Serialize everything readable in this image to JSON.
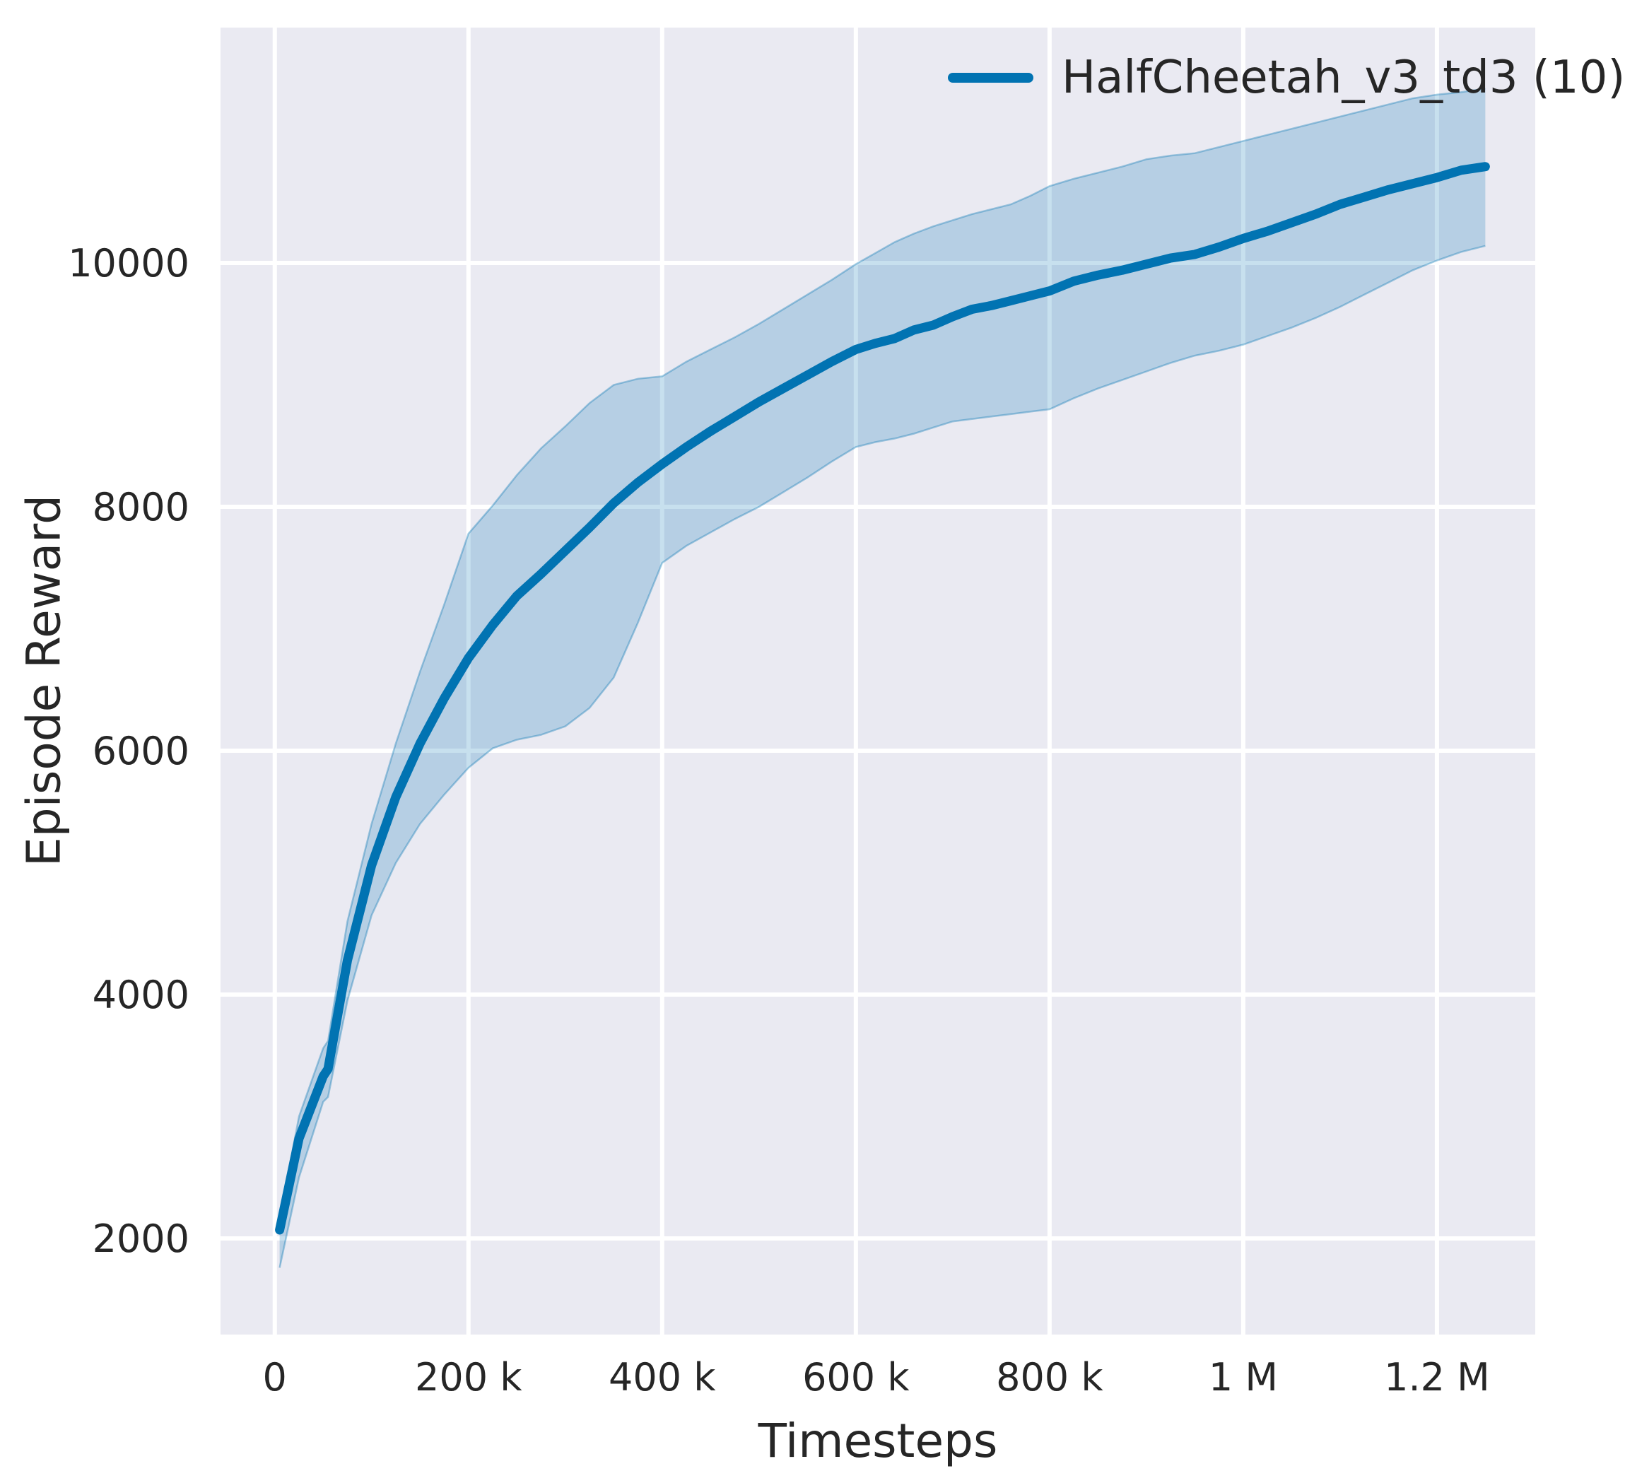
{
  "chart_data": {
    "type": "line",
    "title": "",
    "xlabel": "Timesteps",
    "ylabel": "Episode Reward",
    "legend": {
      "position": "upper right",
      "frame": false,
      "entries": [
        {
          "label": "HalfCheetah_v3_td3 (10)",
          "color": "#0173b2"
        }
      ]
    },
    "grid": true,
    "x_ticks": {
      "values": [
        0,
        200000,
        400000,
        600000,
        800000,
        1000000,
        1200000
      ],
      "labels": [
        "0",
        "200 k",
        "400 k",
        "600 k",
        "800 k",
        "1 M",
        "1.2 M"
      ]
    },
    "y_ticks": {
      "values": [
        2000,
        4000,
        6000,
        8000,
        10000
      ],
      "labels": [
        "2000",
        "4000",
        "6000",
        "8000",
        "10000"
      ]
    },
    "xlim": [
      -56000,
      1301500
    ],
    "ylim": [
      1212,
      11930
    ],
    "series": [
      {
        "name": "HalfCheetah_v3_td3 (10)",
        "x": [
          5000,
          25000,
          50000,
          55000,
          75000,
          100000,
          125000,
          150000,
          175000,
          200000,
          225000,
          250000,
          275000,
          300000,
          325000,
          350000,
          375000,
          400000,
          425000,
          450000,
          475000,
          500000,
          525000,
          550000,
          575000,
          600000,
          620000,
          640000,
          660000,
          680000,
          700000,
          720000,
          740000,
          760000,
          780000,
          800000,
          825000,
          850000,
          875000,
          900000,
          925000,
          950000,
          975000,
          1000000,
          1025000,
          1050000,
          1075000,
          1100000,
          1125000,
          1150000,
          1175000,
          1200000,
          1225000,
          1250000
        ],
        "mean": [
          2070,
          2820,
          3330,
          3390,
          4280,
          5060,
          5620,
          6060,
          6430,
          6760,
          7030,
          7270,
          7450,
          7640,
          7830,
          8030,
          8200,
          8350,
          8490,
          8620,
          8740,
          8860,
          8970,
          9080,
          9190,
          9290,
          9340,
          9380,
          9450,
          9490,
          9560,
          9620,
          9650,
          9690,
          9730,
          9770,
          9850,
          9900,
          9940,
          9990,
          10040,
          10070,
          10130,
          10200,
          10260,
          10330,
          10400,
          10480,
          10540,
          10600,
          10650,
          10700,
          10760,
          10790
        ],
        "lower": [
          1760,
          2500,
          3120,
          3160,
          3950,
          4650,
          5080,
          5400,
          5640,
          5860,
          6020,
          6090,
          6130,
          6200,
          6350,
          6600,
          7050,
          7540,
          7680,
          7790,
          7900,
          8000,
          8120,
          8240,
          8370,
          8490,
          8530,
          8560,
          8600,
          8650,
          8700,
          8720,
          8740,
          8760,
          8780,
          8800,
          8890,
          8970,
          9040,
          9110,
          9180,
          9240,
          9280,
          9330,
          9400,
          9470,
          9550,
          9640,
          9740,
          9840,
          9940,
          10020,
          10090,
          10140
        ],
        "upper": [
          2160,
          3000,
          3560,
          3620,
          4600,
          5400,
          6060,
          6650,
          7200,
          7780,
          8010,
          8260,
          8480,
          8660,
          8850,
          9000,
          9050,
          9070,
          9190,
          9290,
          9390,
          9500,
          9620,
          9740,
          9860,
          9990,
          10080,
          10170,
          10240,
          10300,
          10350,
          10400,
          10440,
          10480,
          10550,
          10630,
          10690,
          10740,
          10790,
          10850,
          10880,
          10900,
          10950,
          11000,
          11050,
          11100,
          11150,
          11200,
          11250,
          11300,
          11350,
          11380,
          11400,
          11430
        ]
      }
    ],
    "colors": {
      "line": "#0173b2",
      "band_fill": "rgba(1,115,178,0.22)",
      "band_edge": "rgba(1,115,178,0.35)",
      "axes_background": "#eaeaf2",
      "gridline": "#ffffff",
      "text": "#262626"
    }
  }
}
